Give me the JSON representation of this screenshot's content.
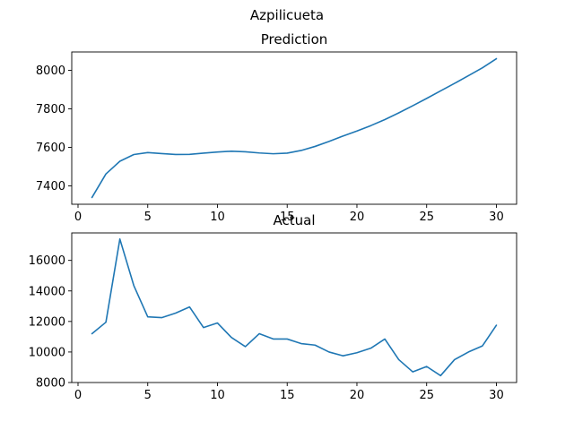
{
  "figure": {
    "suptitle": "Azpilicueta"
  },
  "chart_data": [
    {
      "type": "line",
      "title": "Prediction",
      "xlabel": "",
      "ylabel": "",
      "xlim": [
        -0.45,
        31.45
      ],
      "ylim": [
        7305,
        8095
      ],
      "x_ticks": [
        0,
        5,
        10,
        15,
        20,
        25,
        30
      ],
      "y_ticks": [
        7400,
        7600,
        7800,
        8000
      ],
      "grid": false,
      "color": "#1f77b4",
      "x": [
        1,
        2,
        3,
        4,
        5,
        6,
        7,
        8,
        9,
        10,
        11,
        12,
        13,
        14,
        15,
        16,
        17,
        18,
        19,
        20,
        21,
        22,
        23,
        24,
        25,
        26,
        27,
        28,
        29,
        30
      ],
      "values": [
        7340,
        7462,
        7528,
        7563,
        7573,
        7568,
        7563,
        7564,
        7570,
        7576,
        7580,
        7577,
        7571,
        7567,
        7570,
        7584,
        7605,
        7631,
        7659,
        7685,
        7713,
        7744,
        7779,
        7816,
        7854,
        7893,
        7932,
        7972,
        8013,
        8060
      ]
    },
    {
      "type": "line",
      "title": "Actual",
      "xlabel": "",
      "ylabel": "",
      "xlim": [
        -0.45,
        31.45
      ],
      "ylim": [
        8000,
        17800
      ],
      "x_ticks": [
        0,
        5,
        10,
        15,
        20,
        25,
        30
      ],
      "y_ticks": [
        8000,
        10000,
        12000,
        14000,
        16000
      ],
      "grid": false,
      "color": "#1f77b4",
      "x": [
        1,
        2,
        3,
        4,
        5,
        6,
        7,
        8,
        9,
        10,
        11,
        12,
        13,
        14,
        15,
        16,
        17,
        18,
        19,
        20,
        21,
        22,
        23,
        24,
        25,
        26,
        27,
        28,
        29,
        30
      ],
      "values": [
        11200,
        11950,
        17400,
        14350,
        12300,
        12250,
        12550,
        12950,
        11600,
        11900,
        10950,
        10350,
        11200,
        10850,
        10850,
        10550,
        10450,
        10000,
        9750,
        9950,
        10250,
        10850,
        9500,
        8700,
        9050,
        8450,
        9500,
        10000,
        10400,
        11750
      ]
    }
  ]
}
